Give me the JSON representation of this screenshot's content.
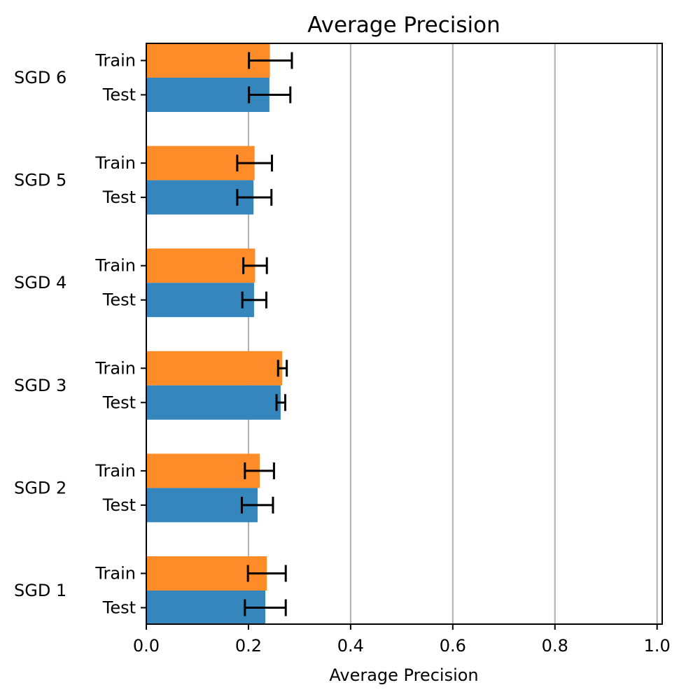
{
  "chart_data": {
    "type": "bar",
    "orientation": "horizontal",
    "title": "Average Precision",
    "xlabel": "Average Precision",
    "ylabel": "",
    "xlim": [
      0.0,
      1.01
    ],
    "xticks": [
      "0.0",
      "0.2",
      "0.4",
      "0.6",
      "0.8",
      "1.0"
    ],
    "xtick_values": [
      0.0,
      0.2,
      0.4,
      0.6,
      0.8,
      1.0
    ],
    "grid": "vertical",
    "legend": "none",
    "categories": [
      "SGD 6",
      "SGD 5",
      "SGD 4",
      "SGD 3",
      "SGD 2",
      "SGD 1"
    ],
    "series": [
      {
        "name": "Train",
        "color": "#ff8c28",
        "values": [
          0.242,
          0.212,
          0.213,
          0.266,
          0.222,
          0.236
        ],
        "error_low": [
          0.201,
          0.178,
          0.19,
          0.258,
          0.193,
          0.199
        ],
        "error_high": [
          0.285,
          0.246,
          0.236,
          0.275,
          0.25,
          0.273
        ]
      },
      {
        "name": "Test",
        "color": "#3686be",
        "values": [
          0.241,
          0.21,
          0.211,
          0.263,
          0.218,
          0.233
        ],
        "error_low": [
          0.201,
          0.178,
          0.188,
          0.255,
          0.187,
          0.193
        ],
        "error_high": [
          0.282,
          0.245,
          0.235,
          0.272,
          0.248,
          0.273
        ]
      }
    ]
  }
}
